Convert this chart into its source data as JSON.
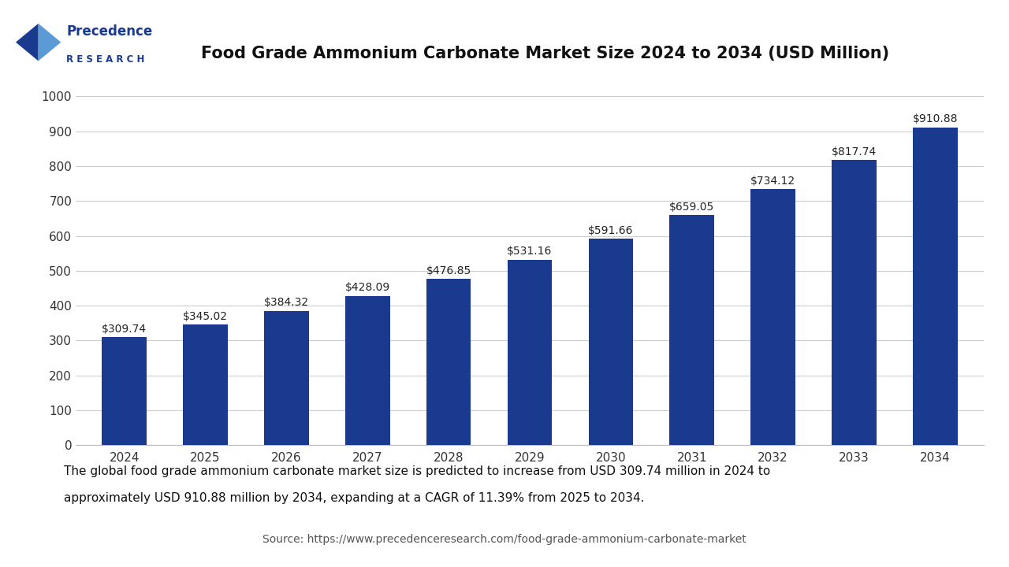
{
  "title": "Food Grade Ammonium Carbonate Market Size 2024 to 2034 (USD Million)",
  "years": [
    2024,
    2025,
    2026,
    2027,
    2028,
    2029,
    2030,
    2031,
    2032,
    2033,
    2034
  ],
  "values": [
    309.74,
    345.02,
    384.32,
    428.09,
    476.85,
    531.16,
    591.66,
    659.05,
    734.12,
    817.74,
    910.88
  ],
  "bar_color": "#1a3a8f",
  "ylim": [
    0,
    1000
  ],
  "yticks": [
    0,
    100,
    200,
    300,
    400,
    500,
    600,
    700,
    800,
    900,
    1000
  ],
  "background_color": "#ffffff",
  "plot_bg_color": "#ffffff",
  "grid_color": "#cccccc",
  "caption_line1": "The global food grade ammonium carbonate market size is predicted to increase from USD 309.74 million in 2024 to",
  "caption_line2": "approximately USD 910.88 million by 2034, expanding at a CAGR of 11.39% from 2025 to 2034.",
  "caption_bg": "#dce9f5",
  "source_text": "Source: https://www.precedenceresearch.com/food-grade-ammonium-carbonate-market",
  "title_fontsize": 15,
  "tick_fontsize": 11,
  "value_fontsize": 10,
  "caption_fontsize": 11,
  "source_fontsize": 10
}
